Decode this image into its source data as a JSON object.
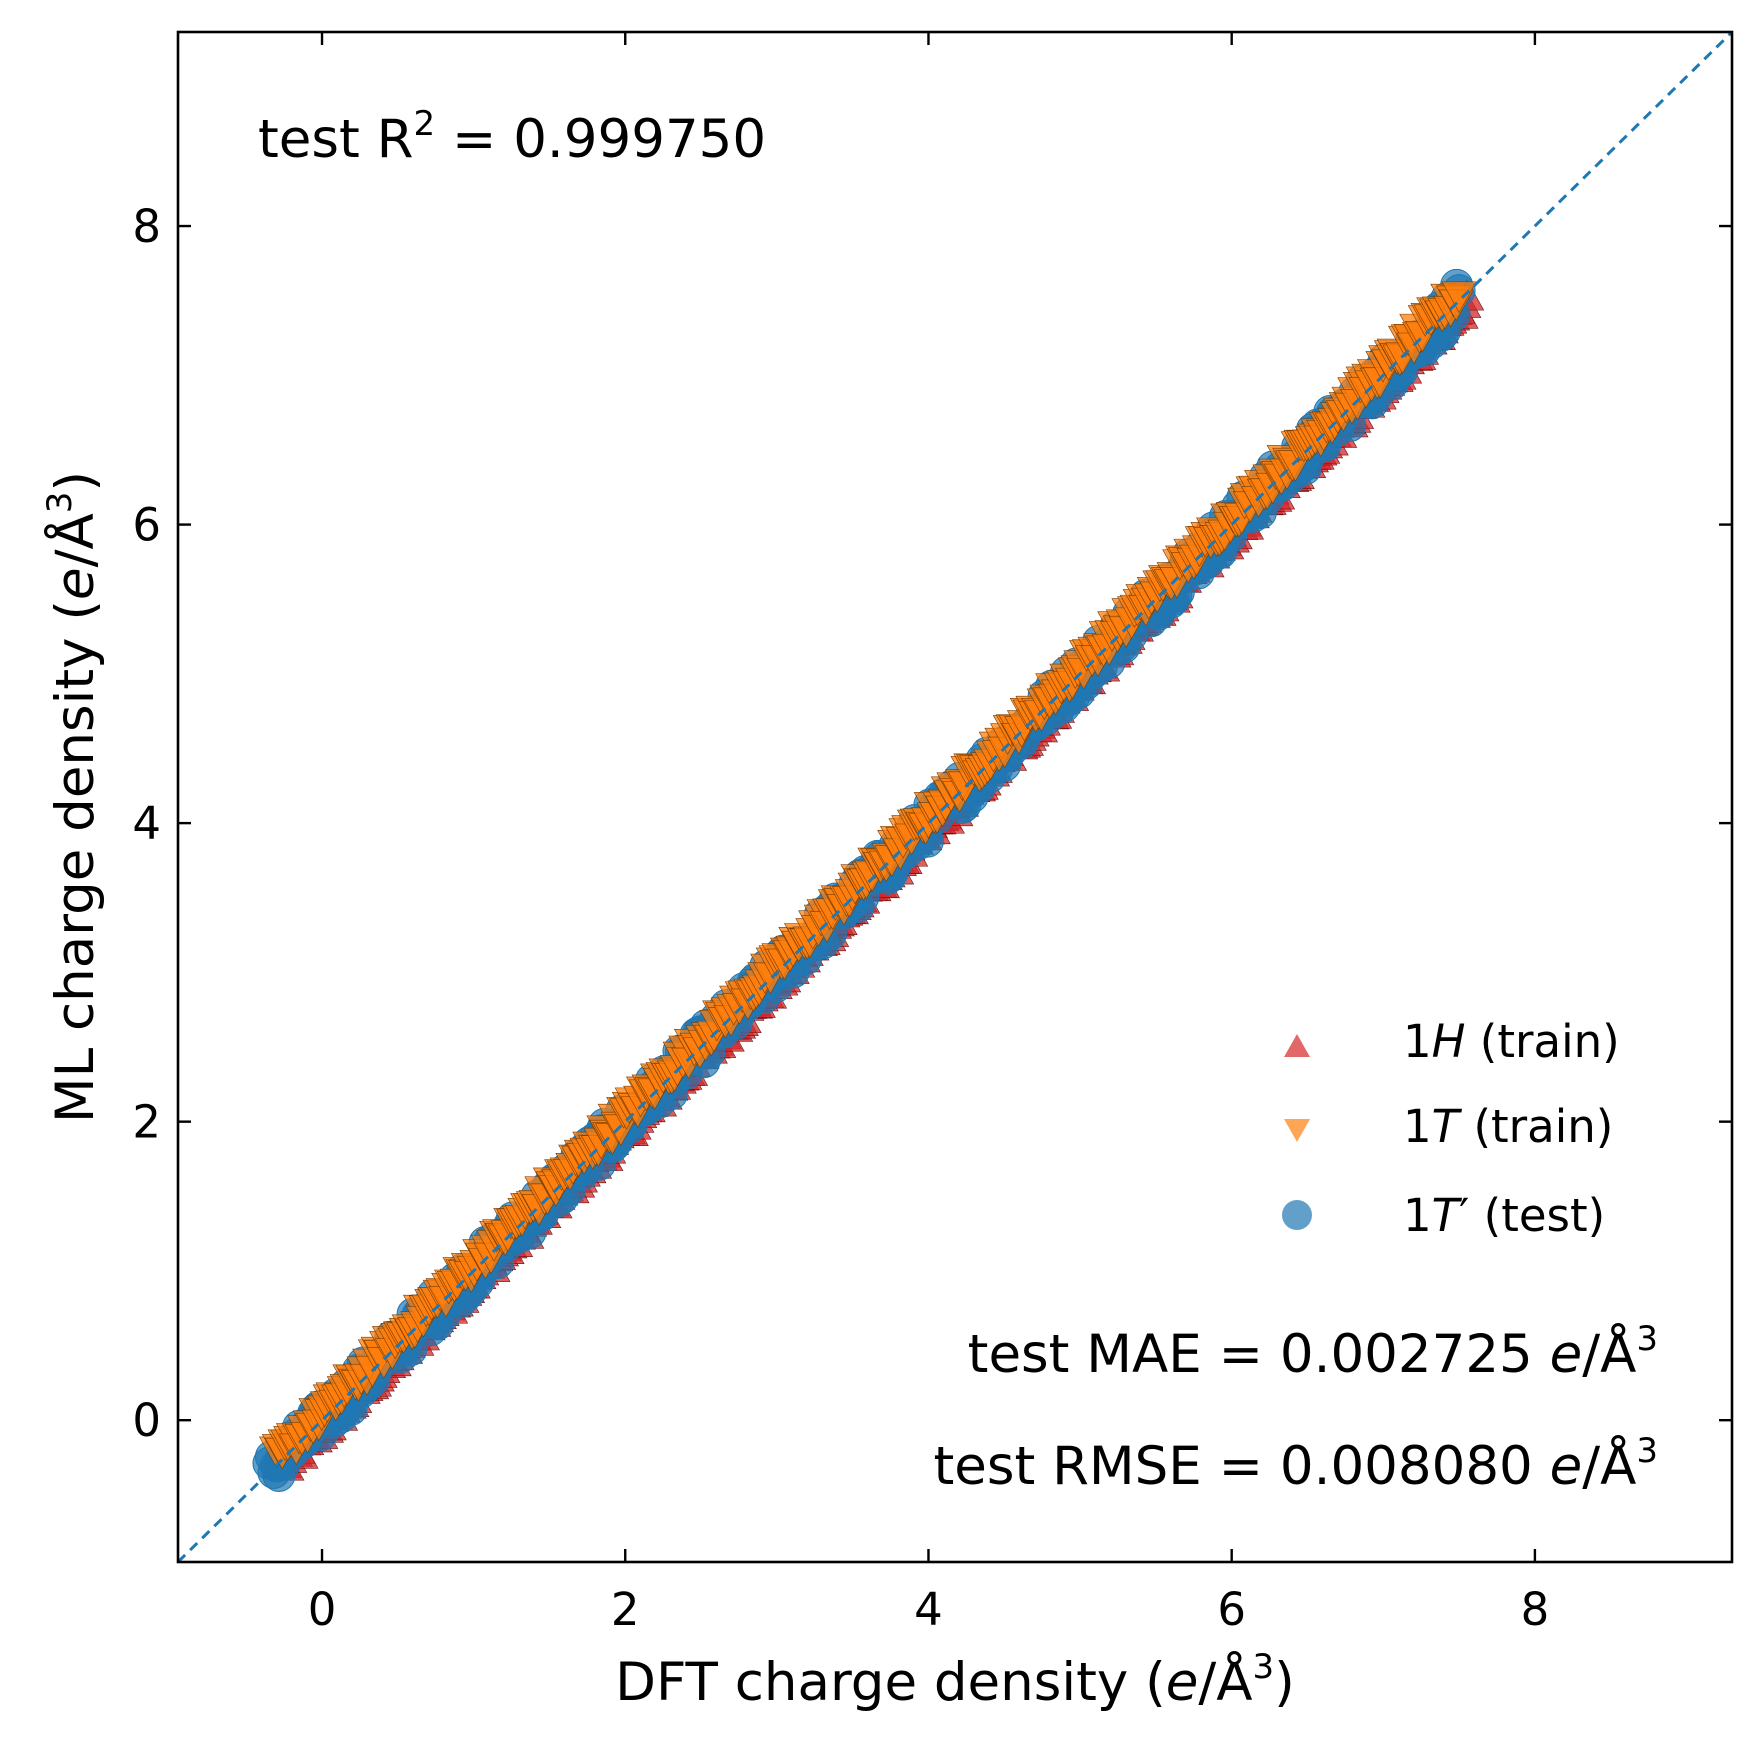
{
  "chart_data": {
    "type": "scatter",
    "title": "",
    "xlabel": "DFT charge density",
    "xlabel_unit": {
      "open": "(",
      "var": "e",
      "slash": "/Å",
      "sup": "3",
      "close": ")"
    },
    "ylabel": "ML charge density",
    "ylabel_unit": {
      "open": "(",
      "var": "e",
      "slash": "/Å",
      "sup": "3",
      "close": ")"
    },
    "xlim": [
      -0.95,
      9.3
    ],
    "ylim": [
      -0.95,
      9.3
    ],
    "xticks": [
      0,
      2,
      4,
      6,
      8
    ],
    "yticks": [
      0,
      2,
      4,
      6,
      8
    ],
    "x_tick_labels": [
      "0",
      "2",
      "4",
      "6",
      "8"
    ],
    "y_tick_labels": [
      "0",
      "2",
      "4",
      "6",
      "8"
    ],
    "grid": false,
    "tick_direction": "in",
    "ticks_on_all_sides": true,
    "reference_line": {
      "style": "dashed",
      "x": [
        -0.95,
        9.3
      ],
      "y": [
        -0.95,
        9.3
      ],
      "color": "#1f77b4"
    },
    "legend_placement": "lower-right",
    "series": [
      {
        "name": "1H (train)",
        "name_num": "1",
        "name_var": "H",
        "name_rest": " (train)",
        "marker": "triangle-up",
        "color": "#d62728",
        "x_range": [
          -0.25,
          7.55
        ],
        "y_offset": -0.06,
        "spread": 0.05
      },
      {
        "name": "1T (train)",
        "name_num": "1",
        "name_var": "T",
        "name_rest": " (train)",
        "marker": "triangle-down",
        "color": "#ff7f0e",
        "x_range": [
          -0.3,
          7.5
        ],
        "y_offset": 0.04,
        "spread": 0.06
      },
      {
        "name": "1T′ (test)",
        "name_num": "1",
        "name_var": "T",
        "name_prime": "′",
        "name_rest": " (test)",
        "marker": "circle",
        "color": "#1f77b4",
        "x_range": [
          -0.35,
          7.5
        ],
        "y_offset": 0.0,
        "spread": 0.12
      }
    ],
    "annotations": {
      "r2": {
        "prefix": "test R",
        "sup": "2",
        "suffix": " = 0.999750"
      },
      "mae": {
        "prefix": "test MAE = 0.002725 ",
        "var": "e",
        "unit": "/Å",
        "sup": "3"
      },
      "rmse": {
        "prefix": "test RMSE = 0.008080 ",
        "var": "e",
        "unit": "/Å",
        "sup": "3"
      }
    }
  }
}
